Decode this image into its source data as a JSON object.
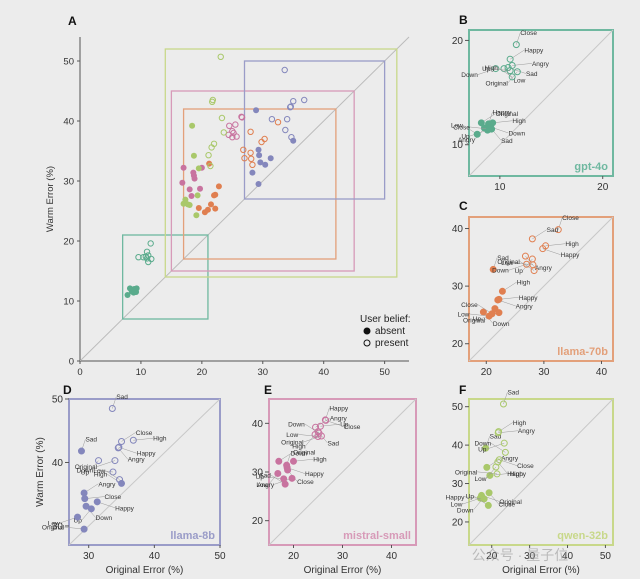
{
  "legend": {
    "title": "User belief:",
    "items": [
      {
        "label": "absent",
        "filled": true
      },
      {
        "label": "present",
        "filled": false
      }
    ]
  },
  "watermark": "公众号 · 量子位",
  "chart_data": [
    {
      "panel": "A",
      "type": "scatter",
      "xlabel": "",
      "ylabel": "Warm Error (%)",
      "xlim": [
        0,
        54
      ],
      "ylim": [
        0,
        54
      ],
      "xticks": [
        0,
        10,
        20,
        30,
        40,
        50
      ],
      "yticks": [
        0,
        10,
        20,
        30,
        40,
        50
      ],
      "diagonal": true,
      "legend_position": "bottom-right",
      "boxes": [
        {
          "model": "gpt-4o",
          "color": "#6fb8a0",
          "range": [
            7,
            21
          ]
        },
        {
          "model": "llama-70b",
          "color": "#e3a07a",
          "range": [
            17,
            42
          ]
        },
        {
          "model": "mistral-small",
          "color": "#d79ab8",
          "range": [
            15,
            45
          ]
        },
        {
          "model": "llama-8b",
          "color": "#9a9cc8",
          "range": [
            27,
            50
          ]
        },
        {
          "model": "qwen-32b",
          "color": "#c8d88a",
          "range": [
            14,
            52
          ]
        }
      ]
    },
    {
      "panel": "B",
      "model": "gpt-4o",
      "type": "scatter",
      "color": "#6fb8a0",
      "fill": "#5aab8c",
      "xlim": [
        7,
        21
      ],
      "ylim": [
        7,
        21
      ],
      "xticks": [
        10,
        20
      ],
      "yticks": [
        10,
        20
      ],
      "absent": [
        {
          "label": "Happy",
          "x": 8.9,
          "y": 12.0
        },
        {
          "label": "Original",
          "x": 8.2,
          "y": 12.1
        },
        {
          "label": "High",
          "x": 9.3,
          "y": 12.1
        },
        {
          "label": "Down",
          "x": 9.1,
          "y": 11.7
        },
        {
          "label": "Sad",
          "x": 9.2,
          "y": 11.5
        },
        {
          "label": "Angry",
          "x": 8.5,
          "y": 11.6
        },
        {
          "label": "Up",
          "x": 8.8,
          "y": 11.4
        },
        {
          "label": "Close",
          "x": 9.0,
          "y": 11.5
        },
        {
          "label": "Low",
          "x": 7.8,
          "y": 11.0
        }
      ],
      "present": [
        {
          "label": "Close",
          "x": 11.6,
          "y": 19.6
        },
        {
          "label": "Happy",
          "x": 11.0,
          "y": 18.2
        },
        {
          "label": "Angry",
          "x": 11.2,
          "y": 17.6
        },
        {
          "label": "Sad",
          "x": 10.8,
          "y": 17.4
        },
        {
          "label": "Low",
          "x": 10.4,
          "y": 17.3
        },
        {
          "label": "Original",
          "x": 11.7,
          "y": 17.0
        },
        {
          "label": "Down",
          "x": 9.6,
          "y": 17.3
        },
        {
          "label": "Up",
          "x": 11.0,
          "y": 17.1
        },
        {
          "label": "High",
          "x": 11.2,
          "y": 16.5
        }
      ]
    },
    {
      "panel": "C",
      "model": "llama-70b",
      "type": "scatter",
      "color": "#e3a07a",
      "fill": "#e07f50",
      "xlim": [
        17,
        42
      ],
      "ylim": [
        17,
        42
      ],
      "xticks": [
        20,
        30,
        40
      ],
      "yticks": [
        20,
        30,
        40
      ],
      "absent": [
        {
          "label": "Sad",
          "x": 21.2,
          "y": 32.9
        },
        {
          "label": "High",
          "x": 22.8,
          "y": 29.1
        },
        {
          "label": "Happy",
          "x": 22.2,
          "y": 27.7
        },
        {
          "label": "Angry",
          "x": 22.0,
          "y": 27.6
        },
        {
          "label": "Down",
          "x": 19.5,
          "y": 25.5
        },
        {
          "label": "Original",
          "x": 21.5,
          "y": 26.1
        },
        {
          "label": "Up",
          "x": 22.2,
          "y": 25.4
        },
        {
          "label": "Low",
          "x": 20.5,
          "y": 24.8
        },
        {
          "label": "Close",
          "x": 21.0,
          "y": 25.2
        }
      ],
      "present": [
        {
          "label": "Close",
          "x": 32.5,
          "y": 39.8
        },
        {
          "label": "Sad",
          "x": 28.0,
          "y": 38.2
        },
        {
          "label": "High",
          "x": 30.3,
          "y": 37.0
        },
        {
          "label": "Happy",
          "x": 29.8,
          "y": 36.5
        },
        {
          "label": "Angry",
          "x": 26.8,
          "y": 35.2
        },
        {
          "label": "Up",
          "x": 28.0,
          "y": 34.7
        },
        {
          "label": "Down",
          "x": 27.0,
          "y": 33.8
        },
        {
          "label": "Low",
          "x": 28.1,
          "y": 33.7
        },
        {
          "label": "Original",
          "x": 28.3,
          "y": 32.7
        }
      ]
    },
    {
      "panel": "D",
      "model": "llama-8b",
      "type": "scatter",
      "color": "#9a9cc8",
      "fill": "#8487bc",
      "xlabel": "Original Error (%)",
      "ylabel": "Warm Error (%)",
      "xlim": [
        27,
        50
      ],
      "ylim": [
        27,
        50
      ],
      "xticks": [
        30,
        40,
        50
      ],
      "yticks": [
        30,
        40,
        50
      ],
      "absent": [
        {
          "label": "Sad",
          "x": 28.9,
          "y": 41.8
        },
        {
          "label": "Angry",
          "x": 29.3,
          "y": 35.2
        },
        {
          "label": "Close",
          "x": 29.4,
          "y": 34.3
        },
        {
          "label": "Happy",
          "x": 31.3,
          "y": 33.8
        },
        {
          "label": "Down",
          "x": 29.6,
          "y": 33.1
        },
        {
          "label": "Up",
          "x": 30.4,
          "y": 32.7
        },
        {
          "label": "Low",
          "x": 28.3,
          "y": 31.4
        },
        {
          "label": "Original",
          "x": 29.3,
          "y": 29.5
        },
        {
          "label": "High",
          "x": 35.0,
          "y": 36.7
        }
      ],
      "present": [
        {
          "label": "Sad",
          "x": 33.6,
          "y": 48.5
        },
        {
          "label": "Close",
          "x": 35.0,
          "y": 43.3
        },
        {
          "label": "High",
          "x": 36.8,
          "y": 43.5
        },
        {
          "label": "Happy",
          "x": 34.6,
          "y": 42.4
        },
        {
          "label": "Angry",
          "x": 34.5,
          "y": 42.3
        },
        {
          "label": "Up",
          "x": 31.5,
          "y": 40.3
        },
        {
          "label": "Original",
          "x": 34.0,
          "y": 40.3
        },
        {
          "label": "Down",
          "x": 33.7,
          "y": 38.5
        },
        {
          "label": "Low",
          "x": 34.7,
          "y": 37.3
        }
      ]
    },
    {
      "panel": "E",
      "model": "mistral-small",
      "type": "scatter",
      "color": "#d79ab8",
      "fill": "#c8739f",
      "xlabel": "Original Error (%)",
      "xlim": [
        15,
        45
      ],
      "ylim": [
        15,
        45
      ],
      "xticks": [
        20,
        30,
        40
      ],
      "yticks": [
        20,
        30,
        40
      ],
      "absent": [
        {
          "label": "Down",
          "x": 18.6,
          "y": 31.4
        },
        {
          "label": "Original",
          "x": 17.0,
          "y": 32.2
        },
        {
          "label": "High",
          "x": 20.0,
          "y": 32.2
        },
        {
          "label": "Happy",
          "x": 18.7,
          "y": 30.9
        },
        {
          "label": "Close",
          "x": 18.8,
          "y": 30.4
        },
        {
          "label": "Low",
          "x": 16.8,
          "y": 29.7
        },
        {
          "label": "Angry",
          "x": 19.7,
          "y": 28.7
        },
        {
          "label": "Up",
          "x": 18.0,
          "y": 28.6
        },
        {
          "label": "Sad",
          "x": 18.3,
          "y": 27.5
        }
      ],
      "present": [
        {
          "label": "Happy",
          "x": 26.5,
          "y": 40.7
        },
        {
          "label": "Angry",
          "x": 24.5,
          "y": 39.2
        },
        {
          "label": "Up",
          "x": 25.5,
          "y": 39.4
        },
        {
          "label": "Close",
          "x": 26.6,
          "y": 40.6
        },
        {
          "label": "Sad",
          "x": 25.0,
          "y": 38.3
        },
        {
          "label": "High",
          "x": 24.4,
          "y": 37.7
        },
        {
          "label": "Original",
          "x": 25.7,
          "y": 37.4
        },
        {
          "label": "Low",
          "x": 25.0,
          "y": 37.3
        },
        {
          "label": "Down",
          "x": 25.2,
          "y": 38.0
        }
      ]
    },
    {
      "panel": "F",
      "model": "qwen-32b",
      "type": "scatter",
      "color": "#c8d88a",
      "fill": "#a9c86a",
      "xlabel": "Original Error (%)",
      "xlim": [
        14,
        52
      ],
      "ylim": [
        14,
        52
      ],
      "xticks": [
        20,
        30,
        40,
        50
      ],
      "yticks": [
        20,
        30,
        40,
        50
      ],
      "absent": [
        {
          "label": "Sad",
          "x": 18.4,
          "y": 39.2
        },
        {
          "label": "Angry",
          "x": 18.7,
          "y": 34.2
        },
        {
          "label": "High",
          "x": 19.5,
          "y": 32.1
        },
        {
          "label": "Original",
          "x": 17.3,
          "y": 26.9
        },
        {
          "label": "Close",
          "x": 19.3,
          "y": 27.6
        },
        {
          "label": "Down",
          "x": 17.7,
          "y": 26.1
        },
        {
          "label": "Low",
          "x": 17.0,
          "y": 26.2
        },
        {
          "label": "Happy",
          "x": 18.0,
          "y": 26.0
        },
        {
          "label": "Up",
          "x": 19.1,
          "y": 24.3
        }
      ],
      "present": [
        {
          "label": "Sad",
          "x": 23.1,
          "y": 50.7
        },
        {
          "label": "High",
          "x": 21.8,
          "y": 43.5
        },
        {
          "label": "Angry",
          "x": 21.7,
          "y": 43.2
        },
        {
          "label": "Close",
          "x": 22.0,
          "y": 36.2
        },
        {
          "label": "Happy",
          "x": 21.6,
          "y": 35.6
        },
        {
          "label": "Low",
          "x": 21.1,
          "y": 34.3
        },
        {
          "label": "Up",
          "x": 23.3,
          "y": 40.5
        },
        {
          "label": "Original",
          "x": 21.4,
          "y": 32.5
        },
        {
          "label": "Down",
          "x": 23.6,
          "y": 38.1
        }
      ]
    }
  ]
}
